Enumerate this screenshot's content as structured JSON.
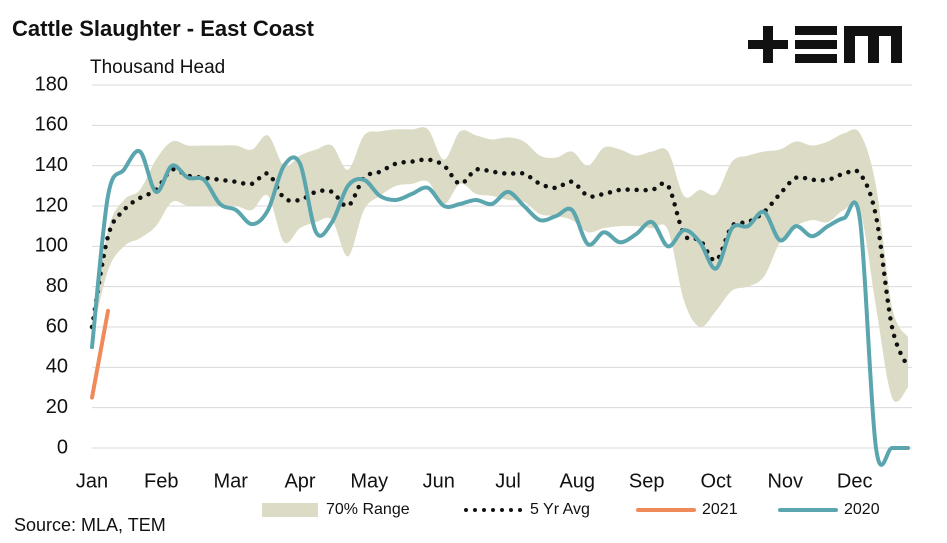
{
  "chart_data": {
    "type": "line",
    "title": "Cattle Slaughter - East Coast",
    "subtitle": "Thousand Head",
    "source": "Source: MLA, TEM",
    "x": [
      1,
      2,
      3,
      4,
      5,
      6,
      7,
      8,
      9,
      10,
      11,
      12,
      13,
      14,
      15,
      16,
      17,
      18,
      19,
      20,
      21,
      22,
      23,
      24,
      25,
      26,
      27,
      28,
      29,
      30,
      31,
      32,
      33,
      34,
      35,
      36,
      37,
      38,
      39,
      40,
      41,
      42,
      43,
      44,
      45,
      46,
      47,
      48,
      49,
      50,
      51,
      52
    ],
    "xlim": [
      1,
      52
    ],
    "xticks": [
      {
        "value": 1,
        "label": "Jan"
      },
      {
        "value": 5.33,
        "label": "Feb"
      },
      {
        "value": 9.67,
        "label": "Mar"
      },
      {
        "value": 14,
        "label": "Apr"
      },
      {
        "value": 18.33,
        "label": "May"
      },
      {
        "value": 22.67,
        "label": "Jun"
      },
      {
        "value": 27,
        "label": "Jul"
      },
      {
        "value": 31.33,
        "label": "Aug"
      },
      {
        "value": 35.67,
        "label": "Sep"
      },
      {
        "value": 40,
        "label": "Oct"
      },
      {
        "value": 44.33,
        "label": "Nov"
      },
      {
        "value": 48.67,
        "label": "Dec"
      }
    ],
    "ylim": [
      0,
      180
    ],
    "yticks": [
      0,
      20,
      40,
      60,
      80,
      100,
      120,
      140,
      160,
      180
    ],
    "grid": true,
    "series": [
      {
        "name": "70% Range",
        "kind": "band",
        "color": "#dcdcc6",
        "high": [
          60,
          108,
          123,
          128,
          143,
          152,
          150,
          150,
          150,
          150,
          148,
          155,
          140,
          145,
          148,
          150,
          138,
          155,
          157,
          158,
          158,
          158,
          143,
          157,
          155,
          153,
          154,
          152,
          145,
          144,
          147,
          140,
          149,
          148,
          145,
          147,
          147,
          125,
          128,
          126,
          142,
          145,
          147,
          148,
          152,
          150,
          152,
          156,
          156,
          130,
          70,
          55
        ],
        "low": [
          55,
          88,
          100,
          104,
          110,
          122,
          120,
          120,
          120,
          120,
          118,
          125,
          102,
          109,
          112,
          113,
          95,
          118,
          125,
          130,
          131,
          132,
          121,
          131,
          126,
          125,
          123,
          122,
          116,
          115,
          113,
          107,
          109,
          110,
          110,
          109,
          108,
          73,
          60,
          68,
          78,
          80,
          85,
          102,
          110,
          113,
          112,
          118,
          118,
          70,
          25,
          30
        ]
      },
      {
        "name": "5 Yr Avg",
        "kind": "line",
        "style": "dotted",
        "color": "#111111",
        "values": [
          60,
          105,
          118,
          124,
          128,
          138,
          135,
          134,
          133,
          132,
          131,
          136,
          124,
          123,
          127,
          127,
          120,
          134,
          137,
          141,
          142,
          143,
          140,
          131,
          138,
          137,
          136,
          136,
          131,
          129,
          132,
          125,
          126,
          128,
          128,
          128,
          130,
          106,
          103,
          93,
          110,
          112,
          117,
          126,
          134,
          133,
          133,
          136,
          136,
          115,
          60,
          40
        ]
      },
      {
        "name": "2021",
        "kind": "line",
        "style": "solid",
        "color": "#f08a5b",
        "values": [
          25,
          68,
          null,
          null,
          null,
          null,
          null,
          null,
          null,
          null,
          null,
          null,
          null,
          null,
          null,
          null,
          null,
          null,
          null,
          null,
          null,
          null,
          null,
          null,
          null,
          null,
          null,
          null,
          null,
          null,
          null,
          null,
          null,
          null,
          null,
          null,
          null,
          null,
          null,
          null,
          null,
          null,
          null,
          null,
          null,
          null,
          null,
          null,
          null,
          null,
          null,
          null
        ]
      },
      {
        "name": "2020",
        "kind": "line",
        "style": "solid",
        "color": "#5ba6ae",
        "values": [
          50,
          125,
          138,
          147,
          127,
          140,
          134,
          133,
          121,
          118,
          111,
          118,
          140,
          141,
          107,
          112,
          130,
          133,
          125,
          123,
          126,
          129,
          120,
          121,
          123,
          121,
          127,
          120,
          113,
          115,
          118,
          101,
          107,
          102,
          106,
          112,
          100,
          108,
          102,
          89,
          109,
          110,
          117,
          103,
          110,
          105,
          110,
          114,
          113,
          0,
          0,
          0
        ]
      }
    ]
  }
}
